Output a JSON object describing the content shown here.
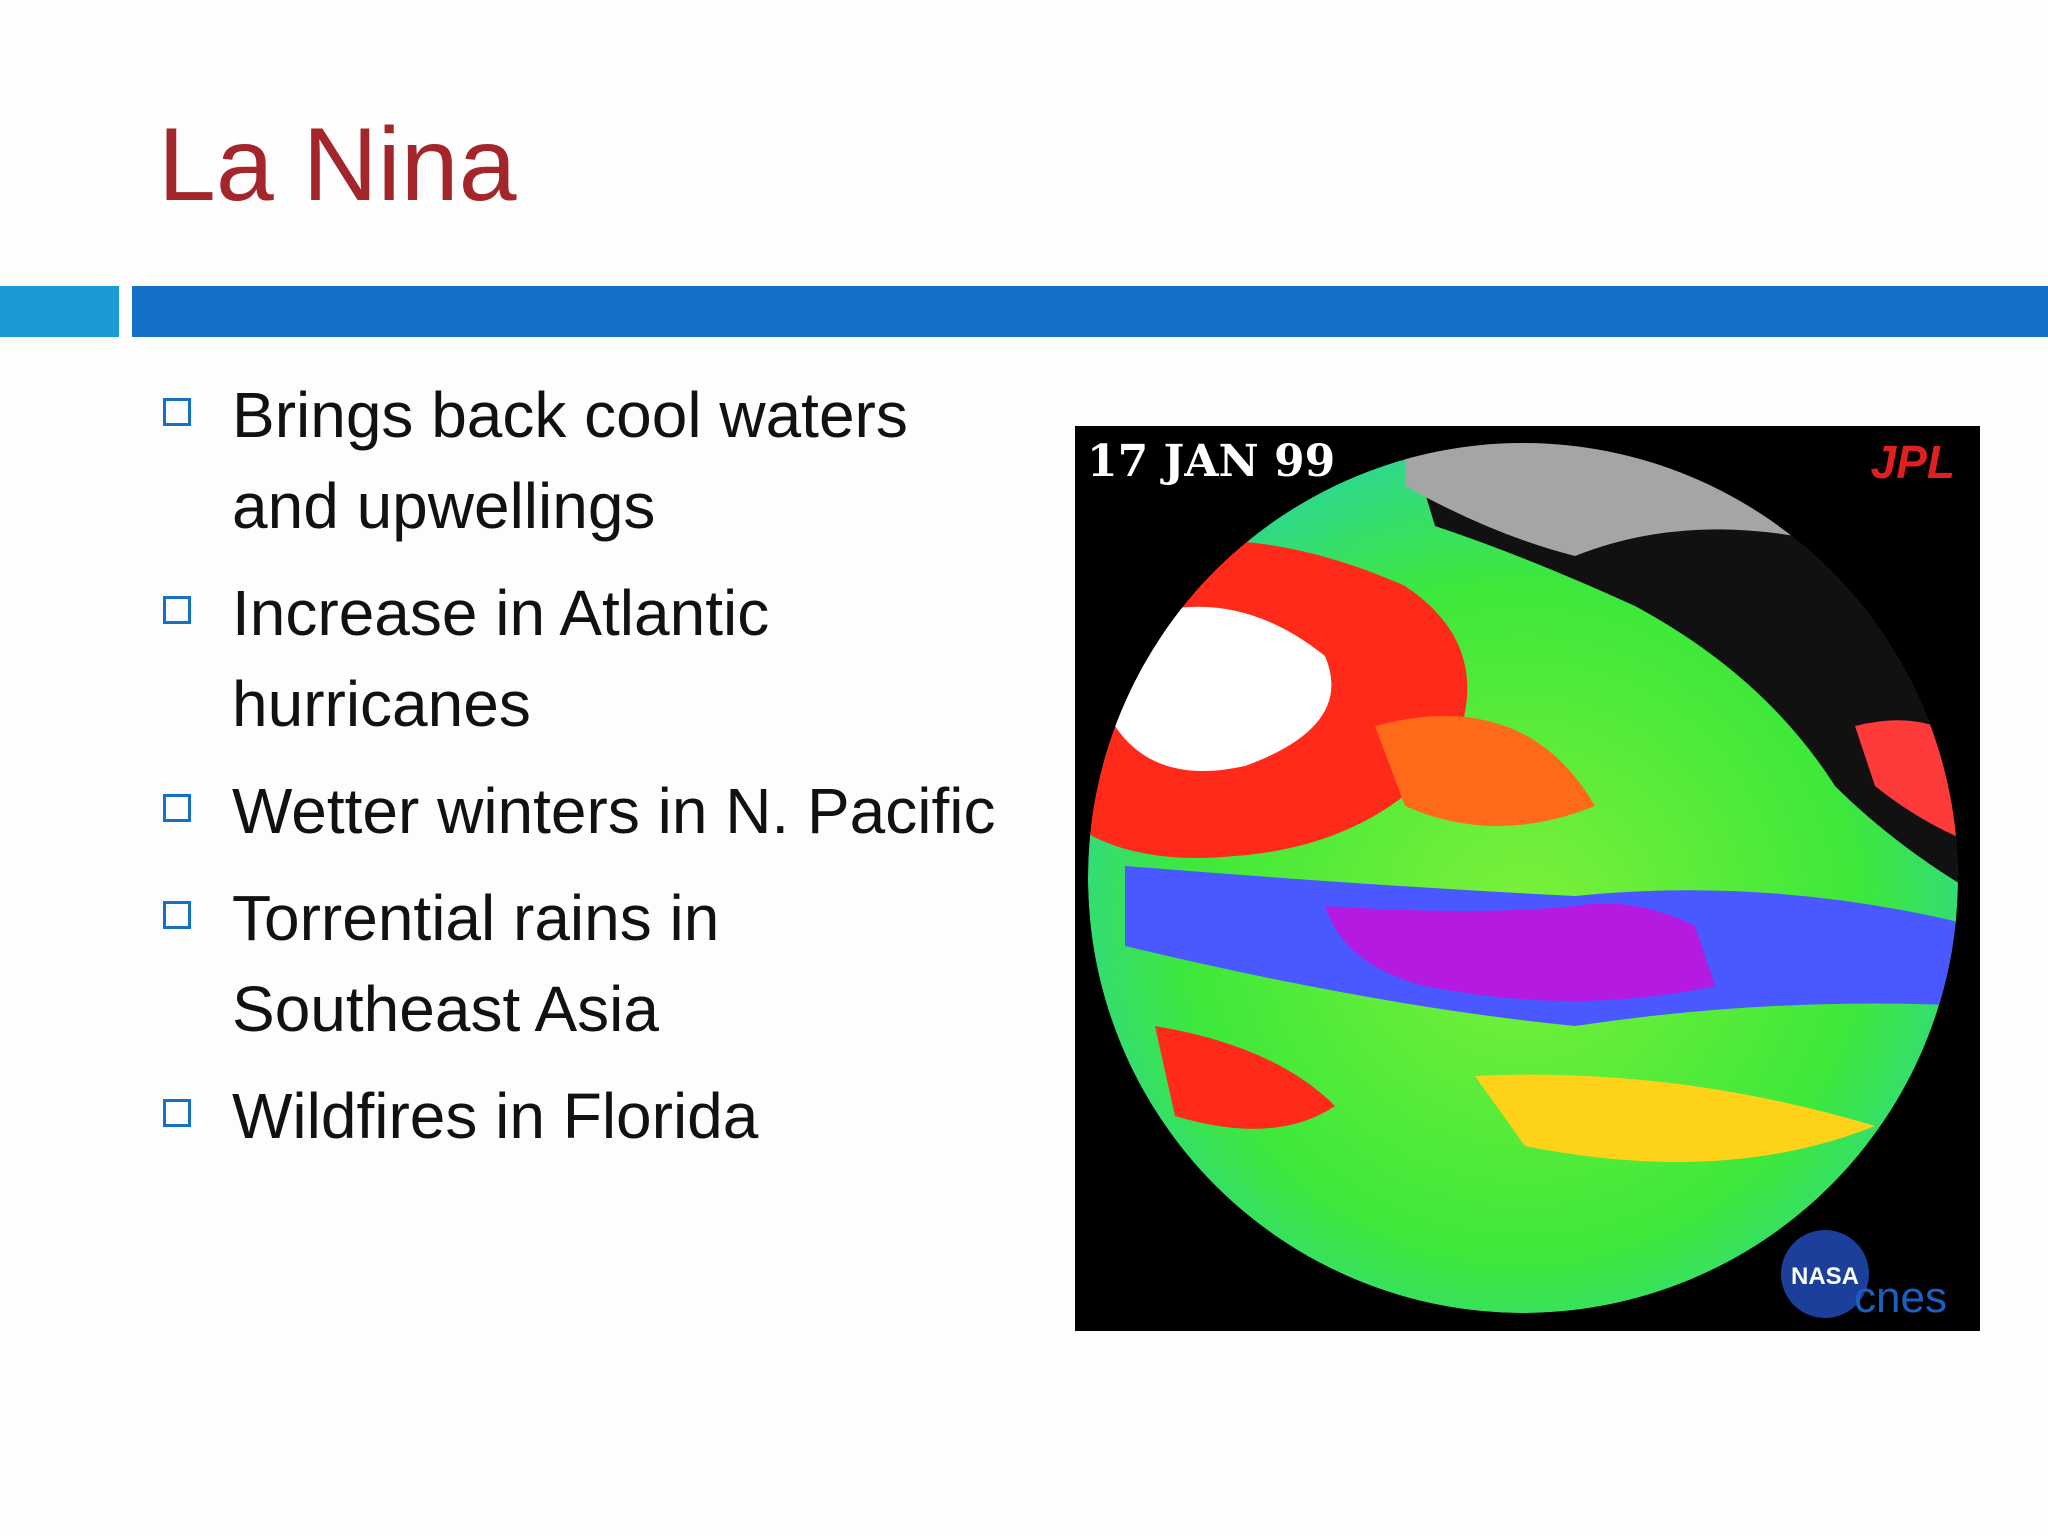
{
  "slide": {
    "title": "La Nina",
    "bullets": [
      "Brings back cool waters and upwellings",
      "Increase in Atlantic hurricanes",
      "Wetter winters in N. Pacific",
      "Torrential rains in Southeast Asia",
      "Wildfires in Florida"
    ],
    "image": {
      "date": "17 JAN 99",
      "logo": "JPL",
      "credits": [
        "NASA",
        "cnes"
      ]
    }
  }
}
